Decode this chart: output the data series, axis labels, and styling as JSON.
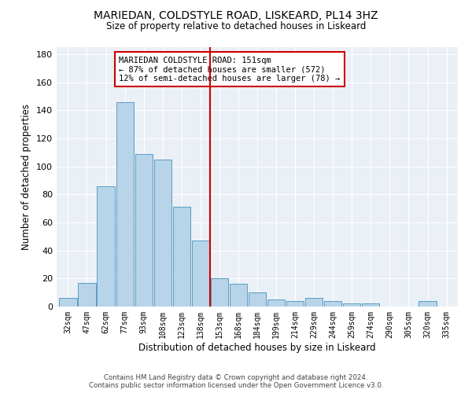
{
  "title": "MARIEDAN, COLDSTYLE ROAD, LISKEARD, PL14 3HZ",
  "subtitle": "Size of property relative to detached houses in Liskeard",
  "xlabel": "Distribution of detached houses by size in Liskeard",
  "ylabel": "Number of detached properties",
  "categories": [
    "32sqm",
    "47sqm",
    "62sqm",
    "77sqm",
    "93sqm",
    "108sqm",
    "123sqm",
    "138sqm",
    "153sqm",
    "168sqm",
    "184sqm",
    "199sqm",
    "214sqm",
    "229sqm",
    "244sqm",
    "259sqm",
    "274sqm",
    "290sqm",
    "305sqm",
    "320sqm",
    "335sqm"
  ],
  "values": [
    6,
    17,
    86,
    146,
    109,
    105,
    71,
    47,
    20,
    16,
    10,
    5,
    4,
    6,
    4,
    2,
    2,
    0,
    0,
    4,
    0
  ],
  "bar_color": "#b8d4e8",
  "bar_edge_color": "#5a9cc5",
  "vline_color": "#cc0000",
  "annotation_title": "MARIEDAN COLDSTYLE ROAD: 151sqm",
  "annotation_line1": "← 87% of detached houses are smaller (572)",
  "annotation_line2": "12% of semi-detached houses are larger (78) →",
  "annotation_box_color": "#cc0000",
  "ylim": [
    0,
    185
  ],
  "yticks": [
    0,
    20,
    40,
    60,
    80,
    100,
    120,
    140,
    160,
    180
  ],
  "bin_width": 15,
  "background_color": "#eaf0f6",
  "grid_color": "#ffffff",
  "footnote1": "Contains HM Land Registry data © Crown copyright and database right 2024.",
  "footnote2": "Contains public sector information licensed under the Open Government Licence v3.0."
}
